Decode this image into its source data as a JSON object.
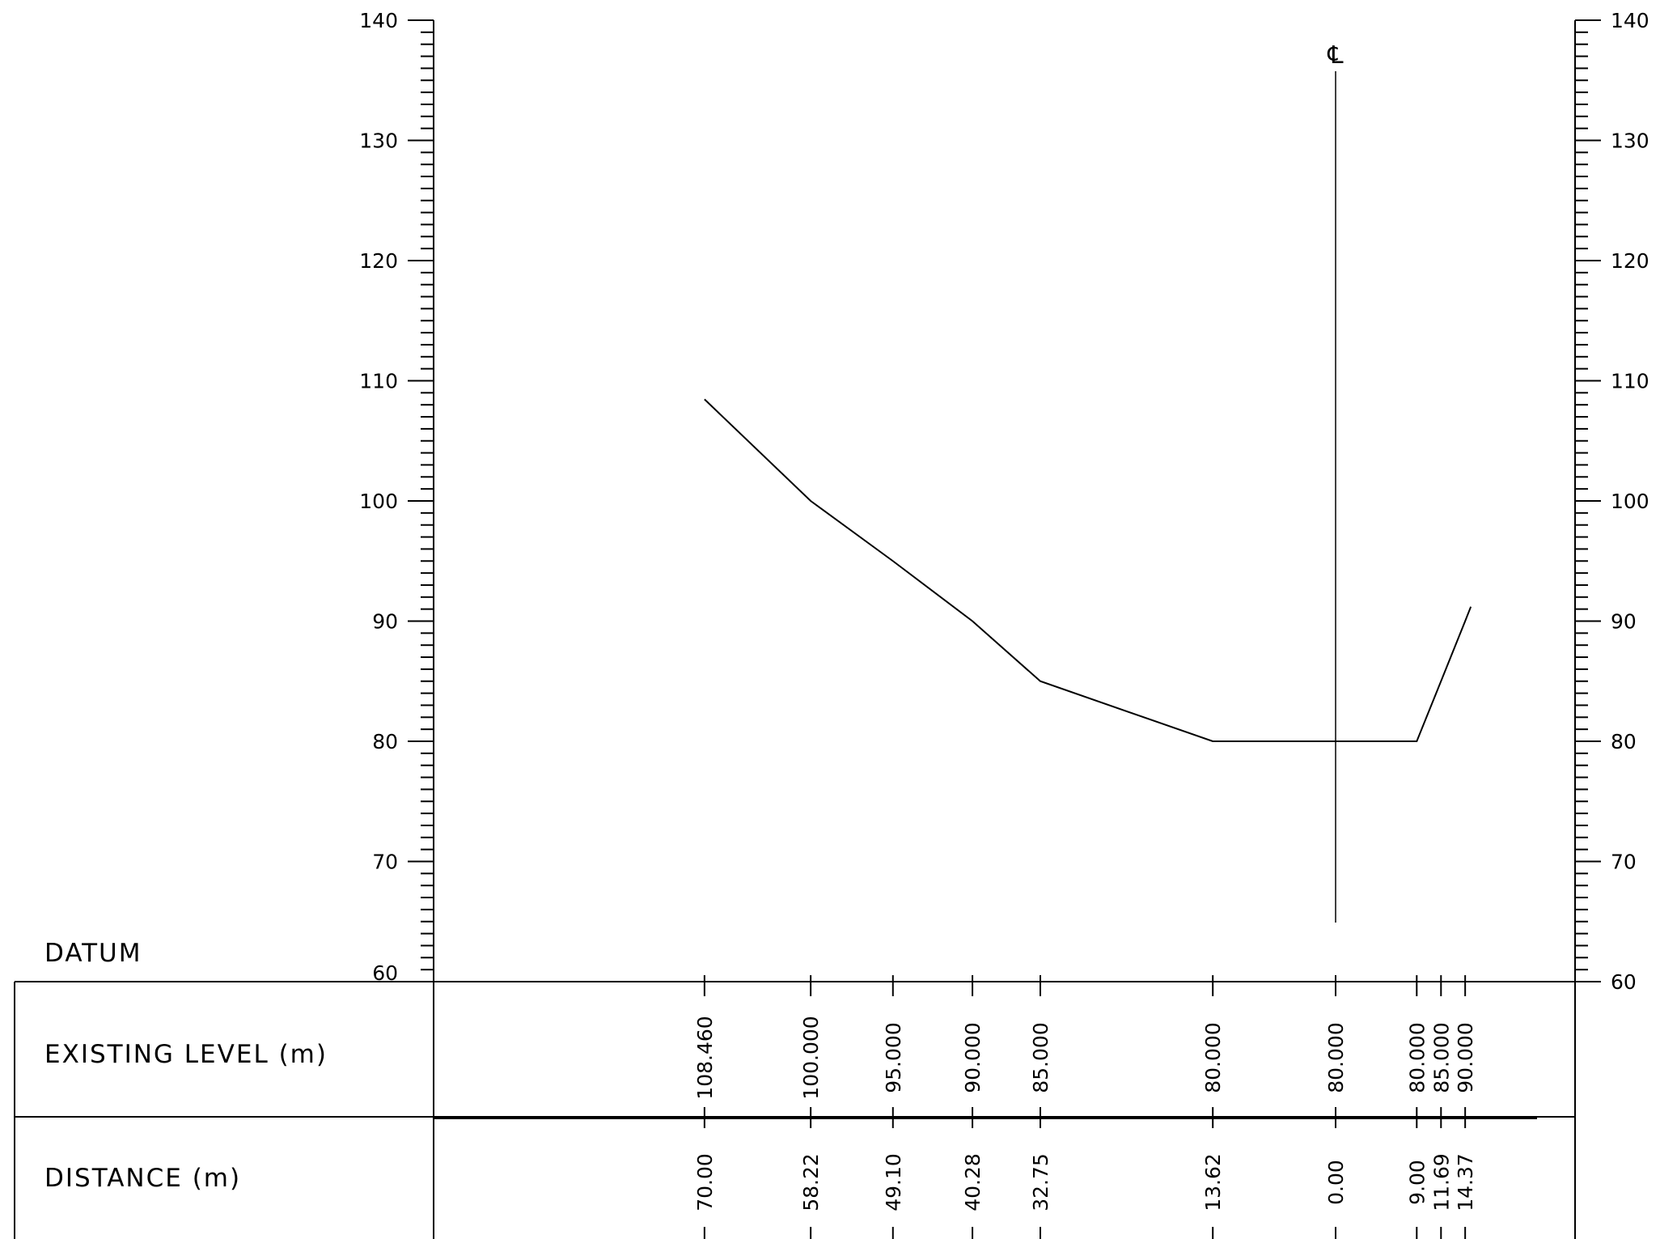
{
  "chart_data": {
    "type": "line",
    "title": "",
    "xlabel": "",
    "ylabel": "",
    "ylim": [
      60,
      140
    ],
    "y_ticks": [
      60,
      70,
      80,
      90,
      100,
      110,
      120,
      130,
      140
    ],
    "y_minor_step": 1,
    "x_axis_reversed": true,
    "centerline_label": "℄",
    "centerline_offset_m": 0.0,
    "grid": false,
    "series": [
      {
        "offset_m": [
          -70.0,
          -58.22,
          -49.1,
          -40.28,
          -32.75,
          -13.62,
          0.0,
          9.0,
          11.69,
          14.37
        ],
        "level_m": [
          108.46,
          100.0,
          95.0,
          90.0,
          85.0,
          80.0,
          80.0,
          80.0,
          85.0,
          90.0
        ],
        "end_point": {
          "offset_m": 15.0,
          "level_m": 91.2
        }
      }
    ]
  },
  "table": {
    "datum_label": "DATUM",
    "rows": [
      {
        "label": "EXISTING LEVEL (m)",
        "values": [
          "108.460",
          "100.000",
          "95.000",
          "90.000",
          "85.000",
          "80.000",
          "80.000",
          "80.000",
          "85.000",
          "90.000"
        ]
      },
      {
        "label": "DISTANCE (m)",
        "values": [
          "70.00",
          "58.22",
          "49.10",
          "40.28",
          "32.75",
          "13.62",
          "0.00",
          "9.00",
          "11.69",
          "14.37"
        ]
      }
    ]
  }
}
